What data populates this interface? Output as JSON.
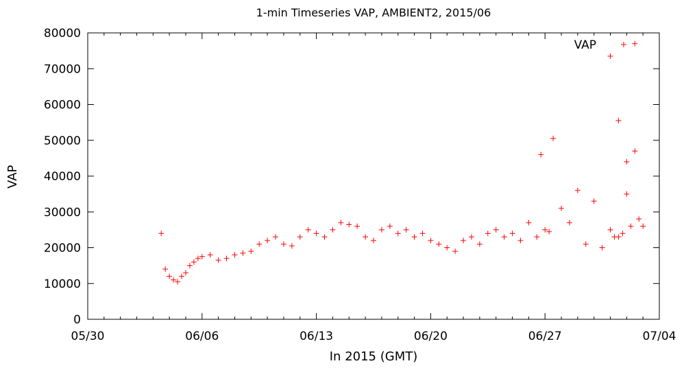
{
  "chart_data": {
    "type": "scatter",
    "title": "1-min Timeseries VAP, AMBIENT2, 2015/06",
    "xlabel": "In 2015 (GMT)",
    "ylabel": "VAP",
    "ylim": [
      0,
      80000
    ],
    "xlim": [
      "2015-05-30",
      "2015-07-04"
    ],
    "x_tick_labels": [
      "05/30",
      "06/06",
      "06/13",
      "06/20",
      "06/27",
      "07/04"
    ],
    "y_tick_labels": [
      "0",
      "10000",
      "20000",
      "30000",
      "40000",
      "50000",
      "60000",
      "70000",
      "80000"
    ],
    "grid": false,
    "legend_position": "top-right",
    "marker": "+",
    "series": [
      {
        "name": "VAP",
        "color": "#ff0000",
        "x": [
          "2015-06-03T12:00",
          "2015-06-03T18:00",
          "2015-06-04T00:00",
          "2015-06-04T06:00",
          "2015-06-04T12:00",
          "2015-06-04T18:00",
          "2015-06-05T00:00",
          "2015-06-05T06:00",
          "2015-06-05T12:00",
          "2015-06-05T18:00",
          "2015-06-06T00:00",
          "2015-06-06T12:00",
          "2015-06-07T00:00",
          "2015-06-07T12:00",
          "2015-06-08T00:00",
          "2015-06-08T12:00",
          "2015-06-09T00:00",
          "2015-06-09T12:00",
          "2015-06-10T00:00",
          "2015-06-10T12:00",
          "2015-06-11T00:00",
          "2015-06-11T12:00",
          "2015-06-12T00:00",
          "2015-06-12T12:00",
          "2015-06-13T00:00",
          "2015-06-13T12:00",
          "2015-06-14T00:00",
          "2015-06-14T12:00",
          "2015-06-15T00:00",
          "2015-06-15T12:00",
          "2015-06-16T00:00",
          "2015-06-16T12:00",
          "2015-06-17T00:00",
          "2015-06-17T12:00",
          "2015-06-18T00:00",
          "2015-06-18T12:00",
          "2015-06-19T00:00",
          "2015-06-19T12:00",
          "2015-06-20T00:00",
          "2015-06-20T12:00",
          "2015-06-21T00:00",
          "2015-06-21T12:00",
          "2015-06-22T00:00",
          "2015-06-22T12:00",
          "2015-06-23T00:00",
          "2015-06-23T12:00",
          "2015-06-24T00:00",
          "2015-06-24T12:00",
          "2015-06-25T00:00",
          "2015-06-25T12:00",
          "2015-06-26T00:00",
          "2015-06-26T12:00",
          "2015-06-27T00:00",
          "2015-06-27T06:00",
          "2015-06-27T12:00",
          "2015-06-28T00:00",
          "2015-06-28T12:00",
          "2015-06-29T00:00",
          "2015-06-29T12:00",
          "2015-06-30T00:00",
          "2015-06-30T12:00",
          "2015-07-01T00:00",
          "2015-07-01T06:00",
          "2015-07-01T12:00",
          "2015-07-01T18:00",
          "2015-07-02T00:00",
          "2015-07-02T06:00",
          "2015-07-02T12:00",
          "2015-07-02T18:00",
          "2015-07-03T00:00"
        ],
        "y": [
          24000,
          14000,
          12000,
          11000,
          10500,
          12000,
          13000,
          15000,
          16000,
          17000,
          17500,
          18000,
          16500,
          17000,
          18000,
          18500,
          19000,
          21000,
          22000,
          23000,
          21000,
          20500,
          23000,
          25000,
          24000,
          23000,
          25000,
          27000,
          26500,
          26000,
          23000,
          22000,
          25000,
          26000,
          24000,
          25000,
          23000,
          24000,
          22000,
          21000,
          20000,
          19000,
          22000,
          23000,
          21000,
          24000,
          25000,
          23000,
          24000,
          22000,
          27000,
          23000,
          25000,
          24500,
          50500,
          31000,
          27000,
          36000,
          21000,
          33000,
          20000,
          25000,
          23000,
          23000,
          24000,
          44000,
          26000,
          47000,
          28000,
          26000
        ],
        "outliers": {
          "x": [
            "2015-06-26T18:00",
            "2015-07-01T00:00",
            "2015-07-01T12:00",
            "2015-07-02T00:00",
            "2015-07-02T12:00"
          ],
          "y": [
            46000,
            73500,
            55500,
            35000,
            77000
          ]
        }
      }
    ]
  }
}
